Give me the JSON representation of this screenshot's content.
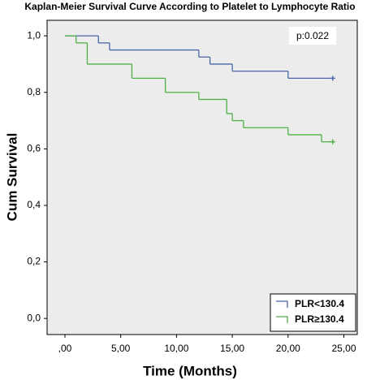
{
  "chart_data": {
    "type": "step",
    "title": "Kaplan-Meier Survival Curve According to Platelet to Lymphocyte Ratio",
    "x_label": "Time (Months)",
    "y_label": "Cum Survival",
    "annotation": "p:0.022",
    "legend": "lower-right",
    "xlim": [
      -1.6,
      26.2
    ],
    "ylim": [
      -0.057,
      1.055
    ],
    "xticks": [
      {
        "value": 0,
        "label": ",00"
      },
      {
        "value": 5,
        "label": "5,00"
      },
      {
        "value": 10,
        "label": "10,00"
      },
      {
        "value": 15,
        "label": "15,00"
      },
      {
        "value": 20,
        "label": "20,00"
      },
      {
        "value": 25,
        "label": "25,00"
      }
    ],
    "yticks": [
      {
        "value": 0,
        "label": "0,0"
      },
      {
        "value": 0.2,
        "label": "0,2"
      },
      {
        "value": 0.4,
        "label": "0,4"
      },
      {
        "value": 0.6,
        "label": "0,6"
      },
      {
        "value": 0.8,
        "label": "0,8"
      },
      {
        "value": 1,
        "label": "1,0"
      }
    ],
    "series": [
      {
        "name": "PLR<130.4",
        "color": "#4a67a8",
        "x": [
          0,
          3,
          4,
          12,
          13,
          15,
          20,
          24
        ],
        "values": [
          1,
          0.975,
          0.95,
          0.925,
          0.9,
          0.875,
          0.85,
          0.85
        ]
      },
      {
        "name": "PLR≥130.4",
        "color": "#4fb045",
        "x": [
          0,
          1,
          2,
          6,
          9,
          12,
          14.5,
          15,
          16,
          20,
          23,
          24
        ],
        "values": [
          1,
          0.975,
          0.9,
          0.85,
          0.8,
          0.775,
          0.725,
          0.7,
          0.675,
          0.65,
          0.625,
          0.625
        ]
      }
    ]
  }
}
